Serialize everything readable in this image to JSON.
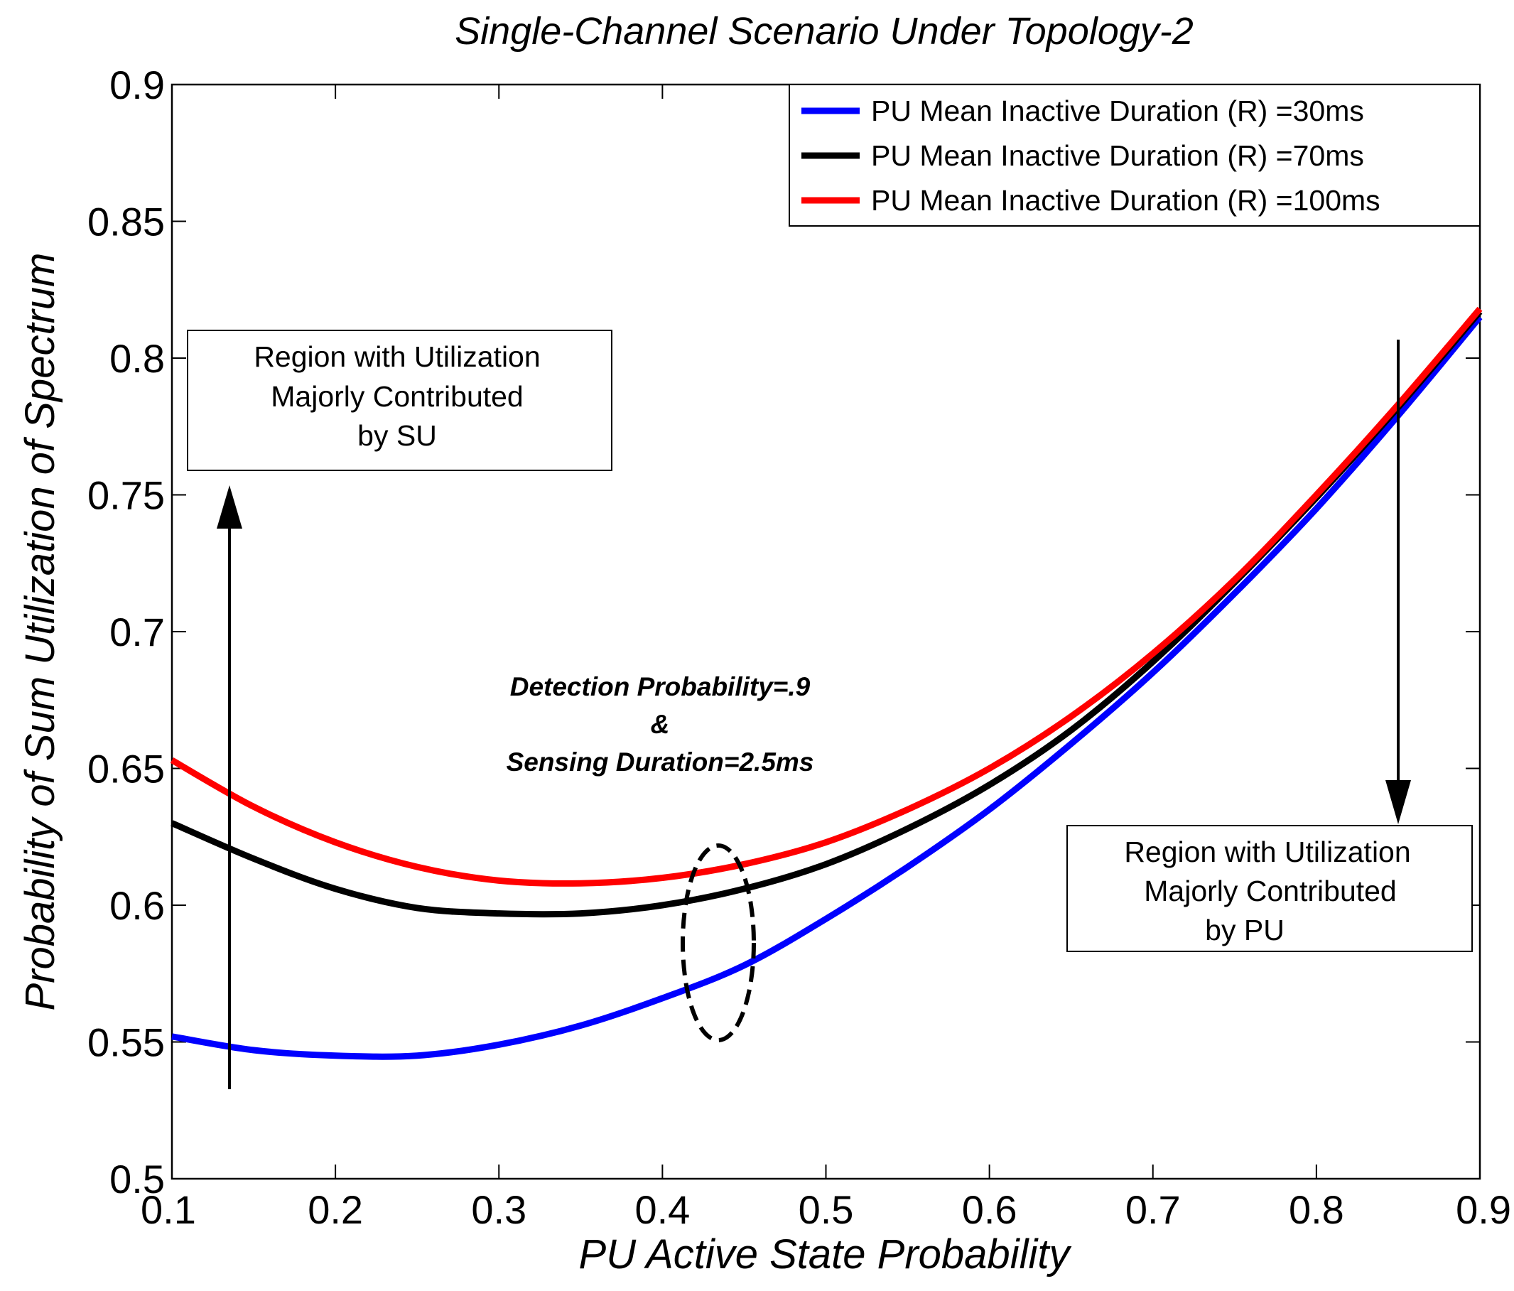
{
  "chart_data": {
    "type": "line",
    "title": "Single-Channel Scenario Under Topology-2",
    "xlabel": "PU Active State Probability",
    "ylabel": "Probability of Sum Utilization of Spectrum",
    "xlim": [
      0.1,
      0.9
    ],
    "ylim": [
      0.5,
      0.9
    ],
    "xticks": [
      0.1,
      0.2,
      0.3,
      0.4,
      0.5,
      0.6,
      0.7,
      0.8,
      0.9
    ],
    "yticks": [
      0.5,
      0.55,
      0.6,
      0.65,
      0.7,
      0.75,
      0.8,
      0.85,
      0.9
    ],
    "xtick_labels": [
      "0.1",
      "0.2",
      "0.3",
      "0.4",
      "0.5",
      "0.6",
      "0.7",
      "0.8",
      "0.9"
    ],
    "ytick_labels": [
      "0.5",
      "0.55",
      "0.6",
      "0.65",
      "0.7",
      "0.75",
      "0.8",
      "0.85",
      "0.9"
    ],
    "legend_position": "top-right",
    "x": [
      0.1,
      0.15,
      0.2,
      0.25,
      0.3,
      0.35,
      0.4,
      0.45,
      0.5,
      0.55,
      0.6,
      0.65,
      0.7,
      0.75,
      0.8,
      0.85,
      0.9
    ],
    "series": [
      {
        "name": "PU Mean Inactive Duration (R) =30ms",
        "color": "#0000ff",
        "values": [
          0.552,
          0.547,
          0.545,
          0.545,
          0.549,
          0.556,
          0.566,
          0.578,
          0.595,
          0.614,
          0.635,
          0.659,
          0.685,
          0.714,
          0.745,
          0.779,
          0.815
        ]
      },
      {
        "name": "PU Mean Inactive Duration (R) =70ms",
        "color": "#000000",
        "values": [
          0.63,
          0.617,
          0.606,
          0.599,
          0.597,
          0.597,
          0.6,
          0.606,
          0.615,
          0.628,
          0.644,
          0.664,
          0.689,
          0.718,
          0.749,
          0.782,
          0.817
        ]
      },
      {
        "name": "PU Mean Inactive Duration (R) =100ms",
        "color": "#ff0000",
        "values": [
          0.653,
          0.636,
          0.623,
          0.614,
          0.609,
          0.608,
          0.61,
          0.615,
          0.623,
          0.635,
          0.65,
          0.669,
          0.692,
          0.719,
          0.75,
          0.783,
          0.818
        ]
      }
    ],
    "annotations": {
      "su_box": {
        "lines": [
          "Region with Utilization",
          "Majorly Contributed",
          "by SU"
        ]
      },
      "pu_box": {
        "lines": [
          "Region with Utilization",
          "Majorly Contributed",
          "by PU"
        ]
      },
      "params": {
        "lines": [
          "Detection Probability=.9",
          "&",
          "Sensing Duration=2.5ms"
        ]
      }
    }
  }
}
